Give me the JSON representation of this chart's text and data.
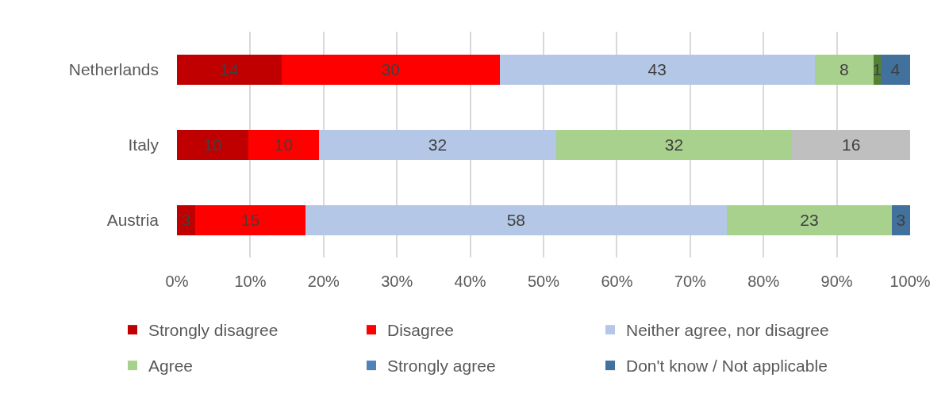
{
  "chart_data": {
    "type": "bar",
    "orientation": "horizontal",
    "stacked": true,
    "categories": [
      "Netherlands",
      "Italy",
      "Austria"
    ],
    "xlim": [
      0,
      100
    ],
    "xticks": [
      {
        "value": 0,
        "label": "0%"
      },
      {
        "value": 10,
        "label": "10%"
      },
      {
        "value": 20,
        "label": "20%"
      },
      {
        "value": 30,
        "label": "30%"
      },
      {
        "value": 40,
        "label": "40%"
      },
      {
        "value": 50,
        "label": "50%"
      },
      {
        "value": 60,
        "label": "60%"
      },
      {
        "value": 70,
        "label": "70%"
      },
      {
        "value": 80,
        "label": "80%"
      },
      {
        "value": 90,
        "label": "90%"
      },
      {
        "value": 100,
        "label": "100%"
      }
    ],
    "grid": "x",
    "legend": "bottom",
    "series": [
      {
        "name": "Strongly disagree",
        "color": "#c00000",
        "values": [
          14.3,
          9.7,
          2.5
        ],
        "value_labels": [
          "14",
          "10",
          "3"
        ]
      },
      {
        "name": "Disagree",
        "color": "#ff0000",
        "values": [
          29.7,
          9.7,
          15.0
        ],
        "value_labels": [
          "30",
          "10",
          "15"
        ]
      },
      {
        "name": "Neither agree, nor disagree",
        "color": "#b4c7e7",
        "values": [
          43.0,
          32.3,
          57.5
        ],
        "value_labels": [
          "43",
          "32",
          "58"
        ]
      },
      {
        "name": "Agree",
        "color": "#a9d18e",
        "values": [
          8,
          32.2,
          22.5
        ],
        "value_labels": [
          "8",
          "32",
          "23"
        ]
      },
      {
        "color": "#548235",
        "values": [
          1,
          null,
          null
        ],
        "value_labels": [
          "1",
          null,
          null
        ]
      },
      {
        "name": "Strongly agree",
        "color": "#4f81bd",
        "values": [
          null,
          null,
          null
        ],
        "value_labels": [
          null,
          null,
          null
        ]
      },
      {
        "name": "Don't know / Not applicable",
        "color": "#41719c",
        "values": [
          4,
          null,
          2.5
        ],
        "value_labels": [
          "4",
          null,
          "3"
        ]
      },
      {
        "color": "#bfbfbf",
        "values": [
          null,
          16.1,
          null
        ],
        "value_labels": [
          null,
          "16",
          null
        ]
      }
    ]
  }
}
